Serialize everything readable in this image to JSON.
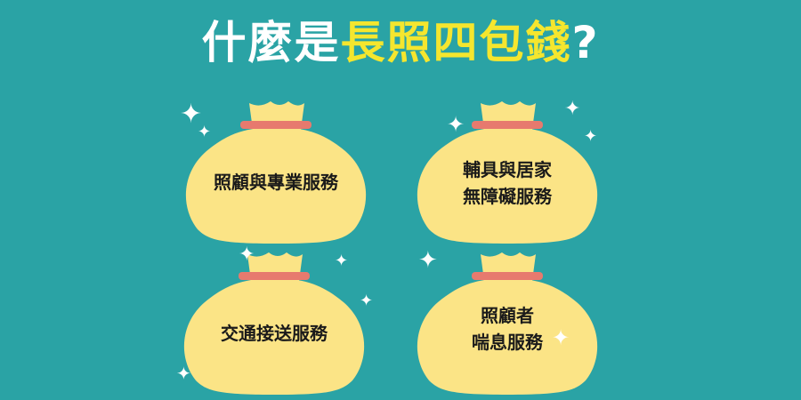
{
  "title": {
    "prefix": "什麼是",
    "highlight": "長照四包錢",
    "suffix": "?"
  },
  "colors": {
    "background": "#2aa3a5",
    "bag": "#fbe486",
    "bag_tie": "#e77a6e",
    "title_white": "#ffffff",
    "title_yellow": "#f5e62e"
  },
  "bags": [
    {
      "line1": "照顧與專業服務",
      "line2": ""
    },
    {
      "line1": "輔具與居家",
      "line2": "無障礙服務"
    },
    {
      "line1": "交通接送服務",
      "line2": ""
    },
    {
      "line1": "照顧者",
      "line2": "喘息服務"
    }
  ],
  "icons": {
    "bag": "money-bag-icon",
    "sparkle": "sparkle-icon"
  }
}
